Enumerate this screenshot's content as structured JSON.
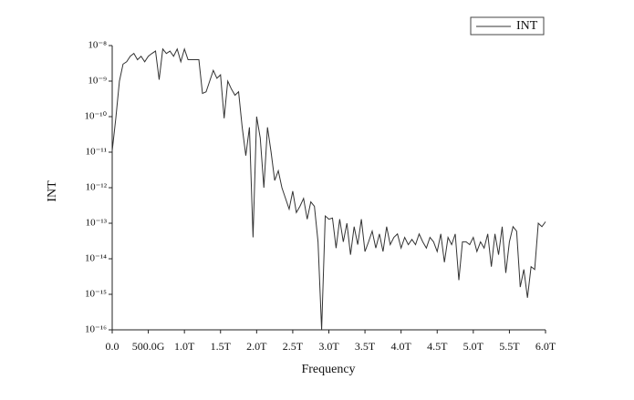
{
  "chart_data": {
    "type": "line",
    "x_label": "Frequency",
    "y_label": "INT",
    "yscale": "log",
    "legend": "top-right",
    "x": [
      0,
      50000000000.0,
      100000000000.0,
      150000000000.0,
      200000000000.0,
      250000000000.0,
      300000000000.0,
      350000000000.0,
      400000000000.0,
      450000000000.0,
      500000000000.0,
      550000000000.0,
      600000000000.0,
      650000000000.0,
      700000000000.0,
      750000000000.0,
      800000000000.0,
      850000000000.0,
      900000000000.0,
      950000000000.0,
      1000000000000.0,
      1050000000000.0,
      1100000000000.0,
      1150000000000.0,
      1200000000000.0,
      1250000000000.0,
      1300000000000.0,
      1350000000000.0,
      1400000000000.0,
      1450000000000.0,
      1500000000000.0,
      1550000000000.0,
      1600000000000.0,
      1650000000000.0,
      1700000000000.0,
      1750000000000.0,
      1800000000000.0,
      1850000000000.0,
      1900000000000.0,
      1950000000000.0,
      2000000000000.0,
      2050000000000.0,
      2100000000000.0,
      2150000000000.0,
      2200000000000.0,
      2250000000000.0,
      2300000000000.0,
      2350000000000.0,
      2400000000000.0,
      2450000000000.0,
      2500000000000.0,
      2550000000000.0,
      2600000000000.0,
      2650000000000.0,
      2700000000000.0,
      2750000000000.0,
      2800000000000.0,
      2850000000000.0,
      2900000000000.0,
      2950000000000.0,
      3000000000000.0,
      3050000000000.0,
      3100000000000.0,
      3150000000000.0,
      3200000000000.0,
      3250000000000.0,
      3300000000000.0,
      3350000000000.0,
      3400000000000.0,
      3450000000000.0,
      3500000000000.0,
      3550000000000.0,
      3600000000000.0,
      3650000000000.0,
      3700000000000.0,
      3750000000000.0,
      3800000000000.0,
      3850000000000.0,
      3900000000000.0,
      3950000000000.0,
      4000000000000.0,
      4050000000000.0,
      4100000000000.0,
      4150000000000.0,
      4200000000000.0,
      4250000000000.0,
      4300000000000.0,
      4350000000000.0,
      4400000000000.0,
      4450000000000.0,
      4500000000000.0,
      4550000000000.0,
      4600000000000.0,
      4650000000000.0,
      4700000000000.0,
      4750000000000.0,
      4800000000000.0,
      4850000000000.0,
      4900000000000.0,
      4950000000000.0,
      5000000000000.0,
      5050000000000.0,
      5100000000000.0,
      5150000000000.0,
      5200000000000.0,
      5250000000000.0,
      5300000000000.0,
      5350000000000.0,
      5400000000000.0,
      5450000000000.0,
      5500000000000.0,
      5550000000000.0,
      5600000000000.0,
      5650000000000.0,
      5700000000000.0,
      5750000000000.0,
      5800000000000.0,
      5850000000000.0,
      5900000000000.0,
      5950000000000.0,
      6000000000000.0
    ],
    "series": [
      {
        "name": "INT",
        "color": "#333333",
        "values": [
          1.1e-11,
          9e-11,
          1e-09,
          3e-09,
          3.5e-09,
          5e-09,
          6e-09,
          4e-09,
          5e-09,
          3.5e-09,
          5e-09,
          6e-09,
          7e-09,
          1.1e-09,
          8e-09,
          6e-09,
          7e-09,
          5e-09,
          8e-09,
          3.5e-09,
          8e-09,
          4e-09,
          4e-09,
          4e-09,
          4e-09,
          4.5e-10,
          5e-10,
          1e-09,
          2e-09,
          1.2e-09,
          1.5e-09,
          9e-11,
          1e-09,
          6e-10,
          4e-10,
          5e-10,
          5e-11,
          8e-12,
          5e-11,
          4e-14,
          1e-10,
          2.5e-11,
          1e-12,
          5e-11,
          1e-11,
          1.6e-12,
          3e-12,
          1e-12,
          5e-13,
          2.5e-13,
          8e-13,
          2e-13,
          3e-13,
          5e-13,
          1.3e-13,
          4e-13,
          3e-13,
          3e-14,
          1e-16,
          1.6e-13,
          1.3e-13,
          1.4e-13,
          2e-14,
          1.3e-13,
          3e-14,
          1e-13,
          1.3e-14,
          8e-14,
          2.5e-14,
          1.3e-13,
          1.6e-14,
          3e-14,
          6e-14,
          2e-14,
          5e-14,
          1.6e-14,
          8e-14,
          2.5e-14,
          4e-14,
          5e-14,
          2e-14,
          4e-14,
          2.5e-14,
          3.5e-14,
          2.5e-14,
          5e-14,
          3e-14,
          2e-14,
          4e-14,
          3e-14,
          1.6e-14,
          5e-14,
          8e-15,
          4e-14,
          2.5e-14,
          5e-14,
          2.5e-15,
          3e-14,
          3e-14,
          2.5e-14,
          4e-14,
          1.6e-14,
          3e-14,
          2e-14,
          5e-14,
          6e-15,
          5e-14,
          1.3e-14,
          8e-14,
          4e-15,
          3e-14,
          8e-14,
          6e-14,
          1.6e-15,
          5e-15,
          8e-16,
          6e-15,
          5e-15,
          1e-13,
          8e-14,
          1.1e-13
        ]
      }
    ],
    "xlim": [
      0,
      6000000000000.0
    ],
    "ylim": [
      1e-16,
      1e-08
    ],
    "xticks": [
      {
        "value": 0,
        "label": "0.0"
      },
      {
        "value": 500000000000.0,
        "label": "500.0G"
      },
      {
        "value": 1000000000000.0,
        "label": "1.0T"
      },
      {
        "value": 1500000000000.0,
        "label": "1.5T"
      },
      {
        "value": 2000000000000.0,
        "label": "2.0T"
      },
      {
        "value": 2500000000000.0,
        "label": "2.5T"
      },
      {
        "value": 3000000000000.0,
        "label": "3.0T"
      },
      {
        "value": 3500000000000.0,
        "label": "3.5T"
      },
      {
        "value": 4000000000000.0,
        "label": "4.0T"
      },
      {
        "value": 4500000000000.0,
        "label": "4.5T"
      },
      {
        "value": 5000000000000.0,
        "label": "5.0T"
      },
      {
        "value": 5500000000000.0,
        "label": "5.5T"
      },
      {
        "value": 6000000000000.0,
        "label": "6.0T"
      }
    ],
    "yticks": [
      {
        "value": 1e-16,
        "label": "10⁻¹⁶"
      },
      {
        "value": 1e-15,
        "label": "10⁻¹⁵"
      },
      {
        "value": 1e-14,
        "label": "10⁻¹⁴"
      },
      {
        "value": 1e-13,
        "label": "10⁻¹³"
      },
      {
        "value": 1e-12,
        "label": "10⁻¹²"
      },
      {
        "value": 1e-11,
        "label": "10⁻¹¹"
      },
      {
        "value": 1e-10,
        "label": "10⁻¹⁰"
      },
      {
        "value": 1e-09,
        "label": "10⁻⁹"
      },
      {
        "value": 1e-08,
        "label": "10⁻⁸"
      }
    ]
  }
}
